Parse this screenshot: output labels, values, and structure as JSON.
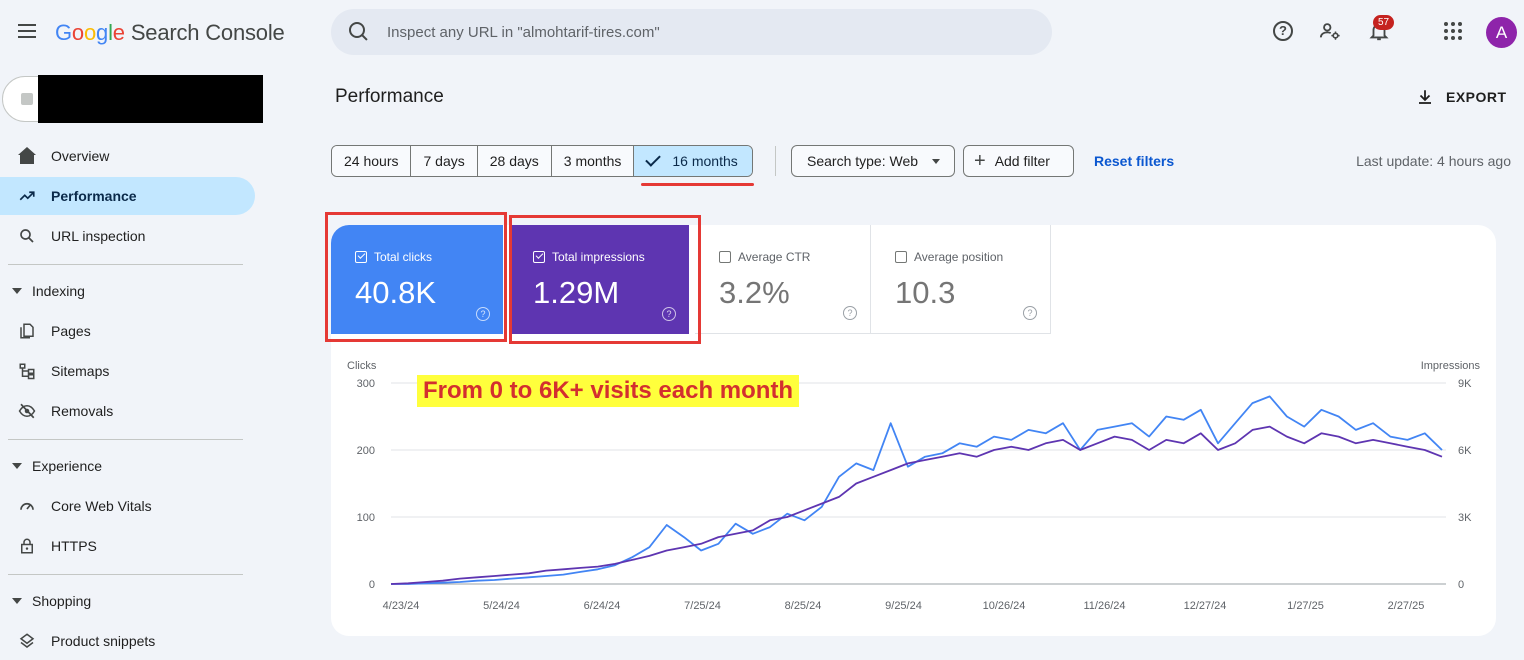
{
  "app": {
    "logo_letters": [
      "G",
      "o",
      "o",
      "g",
      "l",
      "e"
    ],
    "product": "Search Console",
    "search_placeholder": "Inspect any URL in \"almohtarif-tires.com\"",
    "notification_count": "57",
    "avatar_letter": "A"
  },
  "sidebar": {
    "items": [
      {
        "label": "Overview",
        "icon": "home-icon"
      },
      {
        "label": "Performance",
        "icon": "trending-icon",
        "active": true
      },
      {
        "label": "URL inspection",
        "icon": "search-icon"
      }
    ],
    "sections": [
      {
        "title": "Indexing",
        "items": [
          {
            "label": "Pages",
            "icon": "pages-icon"
          },
          {
            "label": "Sitemaps",
            "icon": "sitemap-icon"
          },
          {
            "label": "Removals",
            "icon": "eye-off-icon"
          }
        ]
      },
      {
        "title": "Experience",
        "items": [
          {
            "label": "Core Web Vitals",
            "icon": "gauge-icon"
          },
          {
            "label": "HTTPS",
            "icon": "lock-icon"
          }
        ]
      },
      {
        "title": "Shopping",
        "items": [
          {
            "label": "Product snippets",
            "icon": "diamond-icon"
          }
        ]
      }
    ]
  },
  "main": {
    "title": "Performance",
    "export_label": "EXPORT",
    "date_ranges": [
      "24 hours",
      "7 days",
      "28 days",
      "3 months",
      "16 months"
    ],
    "selected_range": "16 months",
    "search_type": "Search type: Web",
    "add_filter": "Add filter",
    "reset_filters": "Reset filters",
    "last_update": "Last update: 4 hours ago",
    "metrics": [
      {
        "label": "Total clicks",
        "value": "40.8K",
        "checked": true,
        "color": "#4285f4"
      },
      {
        "label": "Total impressions",
        "value": "1.29M",
        "checked": true,
        "color": "#5e35b1"
      },
      {
        "label": "Average CTR",
        "value": "3.2%",
        "checked": false
      },
      {
        "label": "Average position",
        "value": "10.3",
        "checked": false
      }
    ],
    "annotation": "From 0 to 6K+ visits each month"
  },
  "chart_data": {
    "type": "line",
    "ylabel_left": "Clicks",
    "ylabel_right": "Impressions",
    "y_left_ticks": [
      "0",
      "100",
      "200",
      "300"
    ],
    "y_right_ticks": [
      "0",
      "3K",
      "6K",
      "9K"
    ],
    "ylim_left": [
      0,
      300
    ],
    "ylim_right": [
      0,
      9000
    ],
    "grid": true,
    "x_ticks": [
      "4/23/24",
      "5/24/24",
      "6/24/24",
      "7/25/24",
      "8/25/24",
      "9/25/24",
      "10/26/24",
      "11/26/24",
      "12/27/24",
      "1/27/25",
      "2/27/25"
    ],
    "series": [
      {
        "name": "Clicks",
        "axis": "left",
        "color": "#4285f4",
        "values": [
          0,
          0,
          1,
          2,
          3,
          5,
          6,
          8,
          10,
          12,
          14,
          18,
          22,
          28,
          40,
          55,
          88,
          70,
          50,
          60,
          90,
          75,
          85,
          105,
          95,
          115,
          160,
          180,
          170,
          240,
          175,
          190,
          195,
          210,
          205,
          220,
          215,
          230,
          225,
          240,
          200,
          230,
          235,
          240,
          220,
          250,
          245,
          260,
          210,
          240,
          270,
          280,
          250,
          235,
          260,
          250,
          230,
          240,
          220,
          215,
          225,
          200
        ]
      },
      {
        "name": "Impressions",
        "axis": "right",
        "color": "#5e35b1",
        "values": [
          0,
          30,
          90,
          150,
          240,
          300,
          360,
          420,
          480,
          600,
          660,
          720,
          780,
          900,
          1080,
          1260,
          1500,
          1650,
          1800,
          2100,
          2250,
          2400,
          2850,
          3000,
          3300,
          3600,
          3900,
          4500,
          4800,
          5100,
          5400,
          5550,
          5700,
          5850,
          5700,
          6000,
          6150,
          6000,
          6300,
          6450,
          6000,
          6300,
          6600,
          6450,
          6000,
          6450,
          6300,
          6750,
          6000,
          6300,
          6900,
          7050,
          6600,
          6300,
          6750,
          6600,
          6300,
          6450,
          6300,
          6150,
          6000,
          5700
        ]
      }
    ]
  }
}
